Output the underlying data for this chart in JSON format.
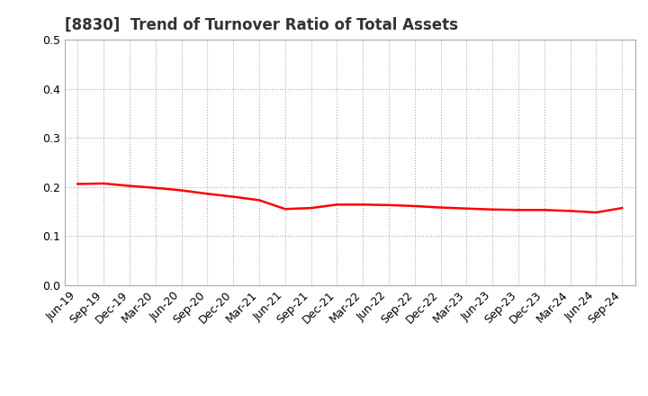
{
  "title": "[8830]  Trend of Turnover Ratio of Total Assets",
  "labels": [
    "Jun-19",
    "Sep-19",
    "Dec-19",
    "Mar-20",
    "Jun-20",
    "Sep-20",
    "Dec-20",
    "Mar-21",
    "Jun-21",
    "Sep-21",
    "Dec-21",
    "Mar-22",
    "Jun-22",
    "Sep-22",
    "Dec-22",
    "Mar-23",
    "Jun-23",
    "Sep-23",
    "Dec-23",
    "Mar-24",
    "Jun-24",
    "Sep-24"
  ],
  "values": [
    0.206,
    0.207,
    0.202,
    0.198,
    0.193,
    0.186,
    0.18,
    0.173,
    0.155,
    0.157,
    0.164,
    0.164,
    0.163,
    0.161,
    0.158,
    0.156,
    0.154,
    0.153,
    0.153,
    0.151,
    0.148,
    0.157
  ],
  "line_color": "#FF0000",
  "line_width": 1.8,
  "ylim": [
    0.0,
    0.5
  ],
  "yticks": [
    0.0,
    0.1,
    0.2,
    0.3,
    0.4,
    0.5
  ],
  "bg_color": "#FFFFFF",
  "grid_color": "#AAAAAA",
  "title_fontsize": 12,
  "tick_fontsize": 9,
  "title_color": "#333333"
}
